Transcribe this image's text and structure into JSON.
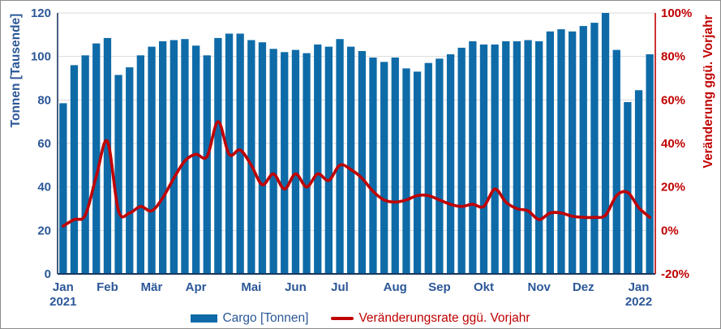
{
  "chart_data": {
    "type": "combo",
    "description": "Weekly air cargo volume with year-over-year change rate, Jan 2021 - Jan 2022",
    "categories_count": 54,
    "series": [
      {
        "name": "Cargo [Tonnen]",
        "type": "bar",
        "axis": "left",
        "color": "#0e6ba8",
        "values": [
          78.5,
          96,
          100.5,
          106,
          108.5,
          91.5,
          95,
          100.5,
          104.5,
          107,
          107.5,
          108,
          105,
          100.5,
          108.5,
          110.5,
          110.5,
          107.5,
          106.5,
          103.5,
          102,
          103,
          101.5,
          105.5,
          104.5,
          108,
          104.5,
          102.5,
          99.5,
          97.5,
          99.5,
          94.5,
          93,
          97,
          99,
          101,
          104,
          107,
          105.5,
          105.5,
          107,
          107,
          107.5,
          107,
          111.5,
          112.5,
          111.5,
          114,
          115.5,
          120,
          103,
          79,
          84.5,
          101
        ]
      },
      {
        "name": "Veränderungsrate ggü. Vorjahr",
        "type": "line",
        "axis": "right",
        "color": "#c00000",
        "values_pct": [
          2,
          5,
          7,
          25,
          41,
          9,
          8,
          11,
          9,
          15,
          24,
          32,
          35,
          34,
          50,
          35,
          37,
          30,
          21,
          26,
          19,
          26,
          20,
          26,
          23,
          30,
          28,
          24,
          18,
          14,
          13,
          14,
          16,
          16,
          14,
          12,
          11,
          12,
          11,
          19,
          13,
          10,
          9,
          5,
          8,
          8,
          6.5,
          6,
          6,
          7,
          16,
          17.5,
          10.5,
          6
        ]
      }
    ],
    "left_axis": {
      "title": "Tonnen [Tausende]",
      "min": 0,
      "max": 120,
      "step": 20,
      "tick_labels": [
        "0",
        "20",
        "40",
        "60",
        "80",
        "100",
        "120"
      ],
      "text_color": "#2b5797",
      "line_color": "#17375e"
    },
    "right_axis": {
      "title": "Veränderung ggü. Vorjahr",
      "min": -20,
      "max": 100,
      "step": 20,
      "tick_labels": [
        "-20%",
        "0%",
        "20%",
        "40%",
        "60%",
        "80%",
        "100%"
      ],
      "text_color": "#c00000",
      "line_color": "#c00000"
    },
    "x_axis": {
      "tick_indices": [
        1,
        5,
        9,
        13,
        18,
        22,
        26,
        31,
        35,
        39,
        44,
        48,
        53
      ],
      "tick_labels": [
        "Jan",
        "Feb",
        "Mär",
        "Apr",
        "Mai",
        "Jun",
        "Jul",
        "Aug",
        "Sep",
        "Okt",
        "Nov",
        "Dez",
        "Jan"
      ],
      "tick_sublabels": [
        "2021",
        "",
        "",
        "",
        "",
        "",
        "",
        "",
        "",
        "",
        "",
        "",
        "2022"
      ],
      "text_color": "#2b5797",
      "line_color": "#17375e"
    },
    "grid": {
      "horizontal": true,
      "color": "#d9d9d9"
    },
    "legend": {
      "position": "bottom",
      "items": [
        {
          "label": "Cargo [Tonnen]",
          "marker": "rect",
          "color": "#0e6ba8"
        },
        {
          "label": "Veränderungsrate ggü. Vorjahr",
          "marker": "line",
          "color": "#c00000"
        }
      ]
    }
  }
}
